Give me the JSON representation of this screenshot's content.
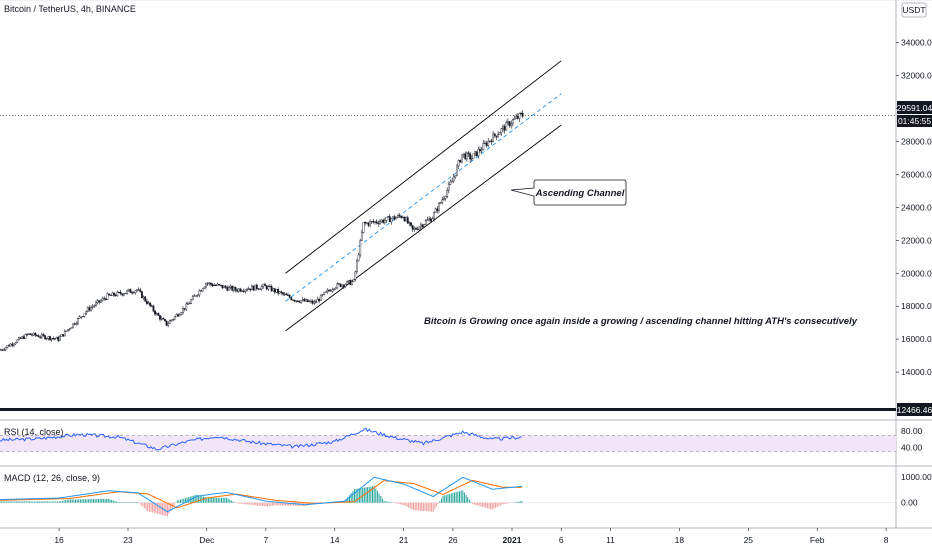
{
  "header": {
    "symbol": "Bitcoin / TetherUS, 4h, BINANCE"
  },
  "price_axis": {
    "currency": "USDT",
    "ticks": [
      "34000.00",
      "32000.00",
      "30000.00",
      "28000.00",
      "26000.00",
      "24000.00",
      "22000.00",
      "20000.00",
      "18000.00",
      "16000.00",
      "14000.00"
    ],
    "last_price": "29591.04",
    "countdown": "01:45:55",
    "low_marker": "12466.46"
  },
  "date_axis": {
    "ticks": [
      "16",
      "23",
      "Dec",
      "7",
      "14",
      "21",
      "26",
      "2021",
      "6",
      "11",
      "18",
      "25",
      "Feb",
      "8"
    ]
  },
  "annotations": {
    "callout": "Ascending Channel",
    "note": "Bitcoin is Growing once again inside a growing / ascending channel hitting ATH's consecutively"
  },
  "rsi": {
    "label": "RSI (14, close)",
    "ticks": [
      "80.00",
      "40.00"
    ],
    "band": [
      30,
      70
    ]
  },
  "macd": {
    "label": "MACD (12, 26, close, 9)",
    "ticks": [
      "1000.00",
      "0.00"
    ]
  },
  "colors": {
    "up": "#000000",
    "down": "#000000",
    "rsi": "#2962ff",
    "rsi_band": "#f3e5f8",
    "macd_line": "#2196f3",
    "signal_line": "#ff6d00",
    "hist_up": "#26a69a",
    "hist_down": "#ef9a9a",
    "channel": "#000000",
    "midline": "#2196f3",
    "tag_bg": "#131722"
  },
  "chart_data": {
    "type": "candlestick",
    "title": "Bitcoin / TetherUS, 4h, BINANCE",
    "y_unit": "USDT",
    "ylim": [
      12000,
      35500
    ],
    "x_range": [
      "2020-11-10",
      "2021-02-09"
    ],
    "price_path": [
      [
        "2020-11-10",
        15300
      ],
      [
        "2020-11-13",
        16300
      ],
      [
        "2020-11-16",
        16000
      ],
      [
        "2020-11-19",
        17800
      ],
      [
        "2020-11-21",
        18600
      ],
      [
        "2020-11-24",
        19000
      ],
      [
        "2020-11-26",
        17500
      ],
      [
        "2020-11-27",
        16900
      ],
      [
        "2020-11-29",
        18000
      ],
      [
        "2020-12-01",
        19400
      ],
      [
        "2020-12-04",
        19000
      ],
      [
        "2020-12-07",
        19200
      ],
      [
        "2020-12-10",
        18400
      ],
      [
        "2020-12-12",
        18200
      ],
      [
        "2020-12-14",
        19200
      ],
      [
        "2020-12-16",
        19500
      ],
      [
        "2020-12-17",
        23000
      ],
      [
        "2020-12-19",
        23200
      ],
      [
        "2020-12-21",
        23500
      ],
      [
        "2020-12-22",
        22600
      ],
      [
        "2020-12-24",
        23400
      ],
      [
        "2020-12-26",
        25600
      ],
      [
        "2020-12-27",
        27200
      ],
      [
        "2020-12-28",
        27000
      ],
      [
        "2020-12-30",
        28200
      ],
      [
        "2021-01-01",
        29200
      ],
      [
        "2021-01-02",
        29591
      ]
    ],
    "channel": {
      "upper": [
        [
          "2020-12-09",
          20000
        ],
        [
          "2021-01-06",
          32900
        ]
      ],
      "lower": [
        [
          "2020-12-09",
          16500
        ],
        [
          "2021-01-06",
          29000
        ]
      ],
      "mid": [
        [
          "2020-12-09",
          18300
        ],
        [
          "2021-01-06",
          30900
        ]
      ]
    },
    "rsi_ylim": [
      0,
      100
    ],
    "rsi_path": [
      [
        "2020-11-10",
        58
      ],
      [
        "2020-11-14",
        62
      ],
      [
        "2020-11-18",
        72
      ],
      [
        "2020-11-22",
        66
      ],
      [
        "2020-11-26",
        36
      ],
      [
        "2020-11-29",
        55
      ],
      [
        "2020-12-02",
        68
      ],
      [
        "2020-12-06",
        52
      ],
      [
        "2020-12-10",
        42
      ],
      [
        "2020-12-14",
        55
      ],
      [
        "2020-12-17",
        85
      ],
      [
        "2020-12-20",
        65
      ],
      [
        "2020-12-23",
        50
      ],
      [
        "2020-12-27",
        78
      ],
      [
        "2020-12-30",
        60
      ],
      [
        "2021-01-02",
        66
      ]
    ],
    "macd_ylim": [
      -900,
      1300
    ],
    "macd_path": [
      [
        "2020-11-10",
        120
      ],
      [
        "2020-11-16",
        180
      ],
      [
        "2020-11-21",
        460
      ],
      [
        "2020-11-24",
        380
      ],
      [
        "2020-11-27",
        -350
      ],
      [
        "2020-11-30",
        250
      ],
      [
        "2020-12-03",
        400
      ],
      [
        "2020-12-07",
        60
      ],
      [
        "2020-12-11",
        -80
      ],
      [
        "2020-12-15",
        60
      ],
      [
        "2020-12-18",
        980
      ],
      [
        "2020-12-21",
        720
      ],
      [
        "2020-12-24",
        240
      ],
      [
        "2020-12-27",
        980
      ],
      [
        "2020-12-30",
        520
      ],
      [
        "2021-01-02",
        630
      ]
    ],
    "signal_path": [
      [
        "2020-11-10",
        90
      ],
      [
        "2020-11-17",
        160
      ],
      [
        "2020-11-22",
        420
      ],
      [
        "2020-11-25",
        340
      ],
      [
        "2020-11-28",
        -200
      ],
      [
        "2020-12-01",
        180
      ],
      [
        "2020-12-04",
        330
      ],
      [
        "2020-12-08",
        90
      ],
      [
        "2020-12-12",
        -30
      ],
      [
        "2020-12-16",
        40
      ],
      [
        "2020-12-19",
        850
      ],
      [
        "2020-12-22",
        740
      ],
      [
        "2020-12-25",
        320
      ],
      [
        "2020-12-28",
        860
      ],
      [
        "2020-12-31",
        600
      ],
      [
        "2021-01-02",
        590
      ]
    ]
  }
}
